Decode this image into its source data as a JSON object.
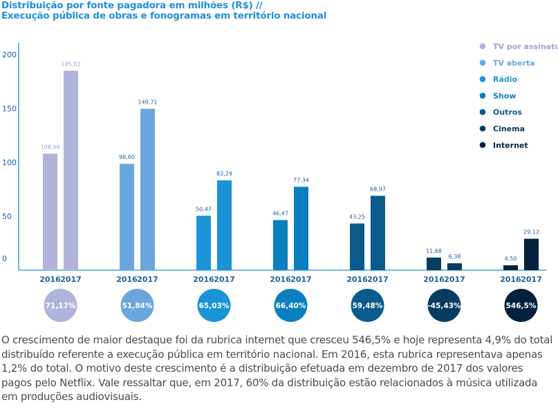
{
  "title": {
    "line1": "Distribuição por fonte pagadora em milhões (R$) //",
    "line2": "Execução pública de obras e fonogramas em território nacional"
  },
  "chart_data": {
    "type": "bar",
    "categories": [
      "TV por assinatura",
      "TV aberta",
      "Rádio",
      "Show",
      "Outros",
      "Cinema",
      "Internet"
    ],
    "years": [
      "2016",
      "2017"
    ],
    "series": [
      {
        "name": "2016",
        "values": [
          108.09,
          98.6,
          50.47,
          46.47,
          43.25,
          11.68,
          4.5
        ]
      },
      {
        "name": "2017",
        "values": [
          185.02,
          149.71,
          83.29,
          77.34,
          68.97,
          6.38,
          29.12
        ]
      }
    ],
    "value_labels_2016": [
      "108,09",
      "98,60",
      "50,47",
      "46,47",
      "43,25",
      "11,68",
      "4,50"
    ],
    "value_labels_2017": [
      "185,02",
      "149,71",
      "83,29",
      "77,34",
      "68,97",
      "6,38",
      "29,12"
    ],
    "growth_labels": [
      "71,17%",
      "51,84%",
      "65,03%",
      "66,40%",
      "59,48%",
      "-45,43%",
      "546,5%"
    ],
    "yticks": [
      0,
      50,
      100,
      150,
      200
    ],
    "ylim": [
      0,
      200
    ],
    "colors": [
      "#b0b3da",
      "#6aa6dc",
      "#1a94d6",
      "#0a7fc0",
      "#0a5a8c",
      "#073c62",
      "#03213d"
    ],
    "legend_position": "top-right"
  },
  "description": "O crescimento de maior destaque foi da rubrica internet que cresceu 546,5% e hoje representa 4,9% do total distribuído referente a execução pública em território nacional. Em 2016, esta rubrica representava apenas 1,2% do total. O motivo deste crescimento é a distribuição efetuada em dezembro de 2017 dos valores pagos pelo Netflix. Vale ressaltar que, em 2017, 60% da distribuição estão relacionados à música utilizada em produções audiovisuais."
}
